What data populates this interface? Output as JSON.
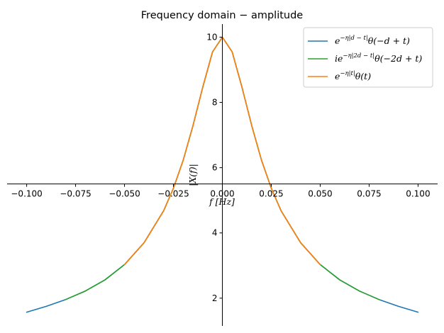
{
  "chart_data": {
    "type": "line",
    "title": "Frequency domain − amplitude",
    "xlabel": "f [Hz]",
    "ylabel": "|X(f)|",
    "xlim": [
      -0.11,
      0.11
    ],
    "ylim": [
      1.15,
      10.4
    ],
    "xticks": [
      -0.1,
      -0.075,
      -0.05,
      -0.025,
      0.0,
      0.025,
      0.05,
      0.075,
      0.1
    ],
    "xtick_labels": [
      "−0.100",
      "−0.075",
      "−0.050",
      "−0.025",
      "0.000",
      "0.025",
      "0.050",
      "0.075",
      "0.100"
    ],
    "yticks": [
      2,
      4,
      6,
      8,
      10
    ],
    "ytick_labels": [
      "2",
      "4",
      "6",
      "8",
      "10"
    ],
    "legend_position": "top-right",
    "grid": false,
    "series": [
      {
        "name_parts": {
          "pre": "e",
          "sup": "−η|d − t|",
          "post": "θ(−d + t)"
        },
        "color": "#1f77b4",
        "x": [
          -0.1,
          -0.09,
          -0.08,
          -0.07,
          -0.06,
          -0.05,
          -0.04,
          -0.03,
          -0.025,
          -0.02,
          -0.015,
          -0.01,
          -0.005,
          0.0,
          0.005,
          0.01,
          0.015,
          0.02,
          0.025,
          0.03,
          0.04,
          0.05,
          0.06,
          0.07,
          0.08,
          0.09,
          0.1
        ],
        "y": [
          1.57,
          1.75,
          1.96,
          2.22,
          2.56,
          3.03,
          3.7,
          4.68,
          5.37,
          6.23,
          7.29,
          8.47,
          9.55,
          10.0,
          9.55,
          8.47,
          7.29,
          6.23,
          5.37,
          4.68,
          3.7,
          3.03,
          2.56,
          2.22,
          1.96,
          1.75,
          1.57
        ]
      },
      {
        "name_parts": {
          "pre": "ie",
          "sup": "−η|2d − t|",
          "post": "θ(−2d + t)"
        },
        "color": "#2ca02c",
        "x": [
          -0.08,
          -0.07,
          -0.06,
          -0.05,
          -0.04,
          -0.03,
          -0.025,
          -0.02,
          -0.015,
          -0.01,
          -0.005,
          0.0,
          0.005,
          0.01,
          0.015,
          0.02,
          0.025,
          0.03,
          0.04,
          0.05,
          0.06,
          0.07,
          0.08
        ],
        "y": [
          1.96,
          2.22,
          2.56,
          3.03,
          3.7,
          4.68,
          5.37,
          6.23,
          7.29,
          8.47,
          9.55,
          10.0,
          9.55,
          8.47,
          7.29,
          6.23,
          5.37,
          4.68,
          3.7,
          3.03,
          2.56,
          2.22,
          1.96
        ]
      },
      {
        "name_parts": {
          "pre": "e",
          "sup": "−η|t|",
          "post": "θ(t)"
        },
        "color": "#ff7f0e",
        "x": [
          -0.05,
          -0.04,
          -0.03,
          -0.025,
          -0.02,
          -0.015,
          -0.01,
          -0.005,
          0.0,
          0.005,
          0.01,
          0.015,
          0.02,
          0.025,
          0.03,
          0.04,
          0.05
        ],
        "y": [
          3.03,
          3.7,
          4.68,
          5.37,
          6.23,
          7.29,
          8.47,
          9.55,
          10.0,
          9.55,
          8.47,
          7.29,
          6.23,
          5.37,
          4.68,
          3.7,
          3.03
        ]
      }
    ]
  }
}
